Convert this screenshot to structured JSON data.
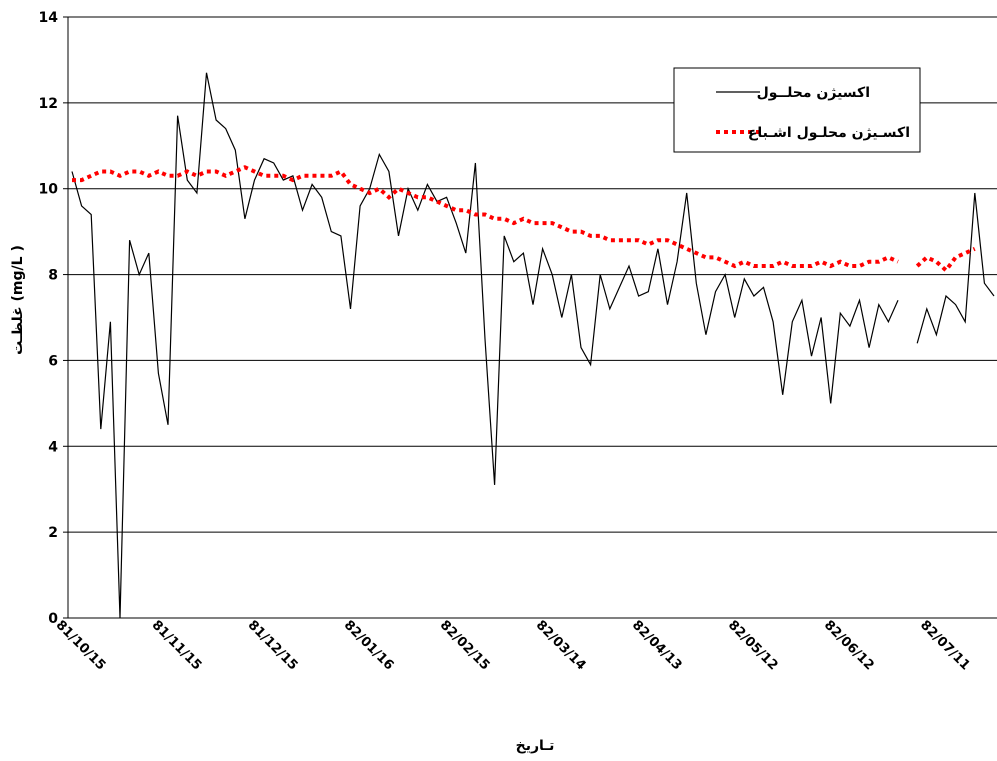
{
  "chart_data": {
    "type": "line",
    "x_label": "تـاریخ",
    "y_label": "غلظـت (mg/L )",
    "categories": [
      "81/10/15",
      null,
      null,
      null,
      null,
      null,
      null,
      null,
      null,
      null,
      "81/11/15",
      null,
      null,
      null,
      null,
      null,
      null,
      null,
      null,
      null,
      "81/12/15",
      null,
      null,
      null,
      null,
      null,
      null,
      null,
      null,
      null,
      "82/01/16",
      null,
      null,
      null,
      null,
      null,
      null,
      null,
      null,
      null,
      "82/02/15",
      null,
      null,
      null,
      null,
      null,
      null,
      null,
      null,
      null,
      "82/03/14",
      null,
      null,
      null,
      null,
      null,
      null,
      null,
      null,
      null,
      "82/04/13",
      null,
      null,
      null,
      null,
      null,
      null,
      null,
      null,
      null,
      "82/05/12",
      null,
      null,
      null,
      null,
      null,
      null,
      null,
      null,
      null,
      "82/06/12",
      null,
      null,
      null,
      null,
      null,
      null,
      null,
      null,
      null,
      "82/07/11",
      null,
      null,
      null,
      null,
      null,
      null
    ],
    "series": [
      {
        "name": "اکسیژن محلــول",
        "color": "#000000",
        "dash": false,
        "values": [
          10.4,
          9.6,
          9.4,
          4.4,
          6.9,
          0,
          8.8,
          8.0,
          8.5,
          5.7,
          4.5,
          11.7,
          10.2,
          9.9,
          12.7,
          11.6,
          11.4,
          10.9,
          9.3,
          10.2,
          10.7,
          10.6,
          10.2,
          10.3,
          9.5,
          10.1,
          9.8,
          9.0,
          8.9,
          7.2,
          9.6,
          10.0,
          10.8,
          10.4,
          8.9,
          10.0,
          9.5,
          10.1,
          9.7,
          9.8,
          9.2,
          8.5,
          10.6,
          6.5,
          3.1,
          8.9,
          8.3,
          8.5,
          7.3,
          8.6,
          8.0,
          7.0,
          8.0,
          6.3,
          5.9,
          8.0,
          7.2,
          7.7,
          8.2,
          7.5,
          7.6,
          8.6,
          7.3,
          8.3,
          9.9,
          7.8,
          6.6,
          7.6,
          8.0,
          7.0,
          7.9,
          7.5,
          7.7,
          6.9,
          5.2,
          6.9,
          7.4,
          6.1,
          7.0,
          5.0,
          7.1,
          6.8,
          7.4,
          6.3,
          7.3,
          6.9,
          7.4,
          null,
          6.4,
          7.2,
          6.6,
          7.5,
          7.3,
          6.9,
          9.9,
          7.8,
          7.5
        ]
      },
      {
        "name": "اکسـیژن محلـول اشـباع",
        "color": "#ff0000",
        "dash": true,
        "values": [
          10.2,
          10.2,
          10.3,
          10.4,
          10.4,
          10.3,
          10.4,
          10.4,
          10.3,
          10.4,
          10.3,
          10.3,
          10.4,
          10.3,
          10.4,
          10.4,
          10.3,
          10.4,
          10.5,
          10.4,
          10.3,
          10.3,
          10.3,
          10.2,
          10.3,
          10.3,
          10.3,
          10.3,
          10.4,
          10.1,
          10.0,
          9.9,
          10.0,
          9.8,
          10.0,
          9.9,
          9.8,
          9.8,
          9.7,
          9.6,
          9.5,
          9.5,
          9.4,
          9.4,
          9.3,
          9.3,
          9.2,
          9.3,
          9.2,
          9.2,
          9.2,
          9.1,
          9.0,
          9.0,
          8.9,
          8.9,
          8.8,
          8.8,
          8.8,
          8.8,
          8.7,
          8.8,
          8.8,
          8.7,
          8.6,
          8.5,
          8.4,
          8.4,
          8.3,
          8.2,
          8.3,
          8.2,
          8.2,
          8.2,
          8.3,
          8.2,
          8.2,
          8.2,
          8.3,
          8.2,
          8.3,
          8.2,
          8.2,
          8.3,
          8.3,
          8.4,
          8.3,
          null,
          8.2,
          8.4,
          8.3,
          8.1,
          8.4,
          8.5,
          8.6,
          null,
          null
        ]
      }
    ],
    "ylim": [
      0,
      14
    ],
    "yticks": [
      0,
      2,
      4,
      6,
      8,
      10,
      12,
      14
    ],
    "grid": true
  }
}
